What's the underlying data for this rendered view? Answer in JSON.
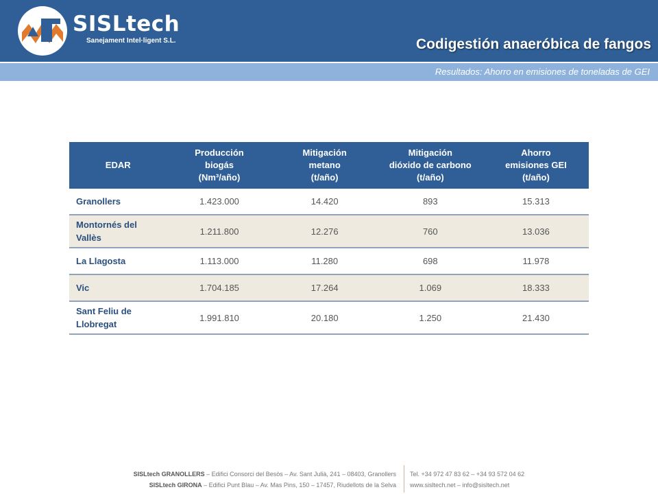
{
  "header": {
    "brand": "SISLtech",
    "brand_sub": "Sanejament Intel·ligent S.L.",
    "title": "Codigestión anaeróbica de fangos",
    "subtitle": "Resultados: Ahorro en emisiones de toneladas de GEI",
    "colors": {
      "primary": "#2f5f96",
      "band": "#8eb2dc",
      "logo_accent": "#e07a2e"
    }
  },
  "table": {
    "headers": [
      [
        "EDAR"
      ],
      [
        "Producción",
        "biogás",
        "(Nm³/año)"
      ],
      [
        "Mitigación",
        "metano",
        "(t/año)"
      ],
      [
        "Mitigación",
        "dióxido de carbono",
        "(t/año)"
      ],
      [
        "Ahorro",
        "emisiones GEI",
        "(t/año)"
      ]
    ],
    "rows": [
      {
        "name": [
          "Granollers"
        ],
        "biogas": "1.423.000",
        "metano": "14.420",
        "co2": "893",
        "ahorro": "15.313"
      },
      {
        "name": [
          "Montornés del",
          "Vallès"
        ],
        "biogas": "1.211.800",
        "metano": "12.276",
        "co2": "760",
        "ahorro": "13.036"
      },
      {
        "name": [
          "La Llagosta"
        ],
        "biogas": "1.113.000",
        "metano": "11.280",
        "co2": "698",
        "ahorro": "11.978"
      },
      {
        "name": [
          "Vic"
        ],
        "biogas": "1.704.185",
        "metano": "17.264",
        "co2": "1.069",
        "ahorro": "18.333"
      },
      {
        "name": [
          "Sant Feliu de",
          "Llobregat"
        ],
        "biogas": "1.991.810",
        "metano": "20.180",
        "co2": "1.250",
        "ahorro": "21.430"
      }
    ]
  },
  "footer": {
    "office1_name": "SISLtech GRANOLLERS",
    "office1_address": " – Edifici Consorci del Besòs – Av. Sant Julià, 241 – 08403, Granollers",
    "office2_name": "SISLtech GIRONA",
    "office2_address": " – Edifici Punt Blau – Av. Mas Pins, 150 – 17457, Riudellots de la Selva",
    "phones": "Tel. +34 972 47 83 62  –  +34 93 572 04 62",
    "web": "www.sisltech.net  –  info@sisltech.net"
  }
}
